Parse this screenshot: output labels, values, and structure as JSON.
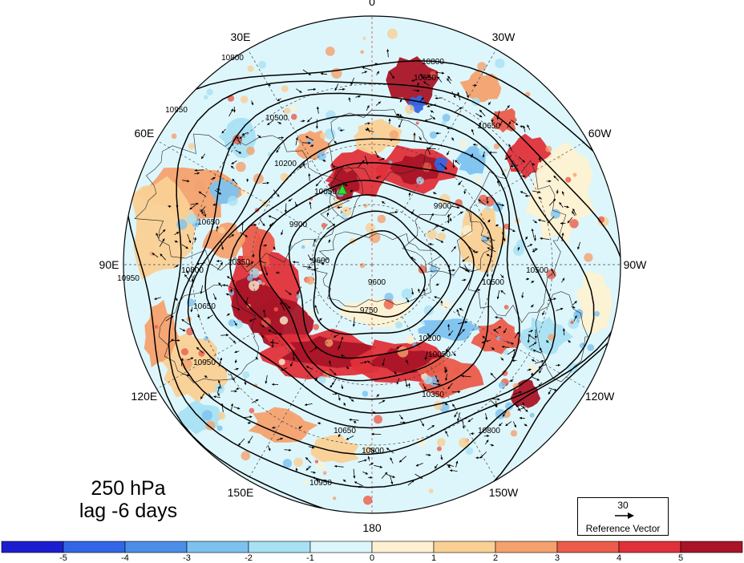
{
  "title": {
    "level": "250 hPa",
    "lag": "lag -6 days"
  },
  "longitude_labels": [
    {
      "lon": 0,
      "text": "0"
    },
    {
      "lon": 30,
      "text": "30W"
    },
    {
      "lon": 60,
      "text": "60W"
    },
    {
      "lon": 90,
      "text": "90W"
    },
    {
      "lon": 120,
      "text": "120W"
    },
    {
      "lon": 150,
      "text": "150W"
    },
    {
      "lon": 180,
      "text": "180"
    },
    {
      "lon": 210,
      "text": "150E"
    },
    {
      "lon": 240,
      "text": "120E"
    },
    {
      "lon": 270,
      "text": "90E"
    },
    {
      "lon": 300,
      "text": "60E"
    },
    {
      "lon": 330,
      "text": "30E"
    }
  ],
  "contour_levels": [
    9600,
    9750,
    9900,
    10050,
    10200,
    10350,
    10500,
    10650,
    10800,
    10950
  ],
  "contour_labels": [
    "9600",
    "9600",
    "9750",
    "9900",
    "9900",
    "10050",
    "10050",
    "10200",
    "10200",
    "10350",
    "10350",
    "10500",
    "10500",
    "10500",
    "10650",
    "10650",
    "10650",
    "10650",
    "10650",
    "10800",
    "10800",
    "10800",
    "10800",
    "10800",
    "10950",
    "10950",
    "10950",
    "10950"
  ],
  "colorbar": {
    "ticks": [
      "-5",
      "-4",
      "-3",
      "-2",
      "-1",
      "0",
      "1",
      "2",
      "3",
      "4",
      "5"
    ],
    "colors": [
      "#1d1dd0",
      "#3266e6",
      "#4b8ee8",
      "#7cc2ef",
      "#a8e1f4",
      "#ddf6fb",
      "#fdf1d2",
      "#fad095",
      "#f4a16e",
      "#eb5c4a",
      "#e0303a",
      "#a91427"
    ]
  },
  "reference_vector": {
    "value": "30",
    "label": "Reference Vector"
  },
  "marker": {
    "type": "green-triangle",
    "color": "#33dd33"
  }
}
